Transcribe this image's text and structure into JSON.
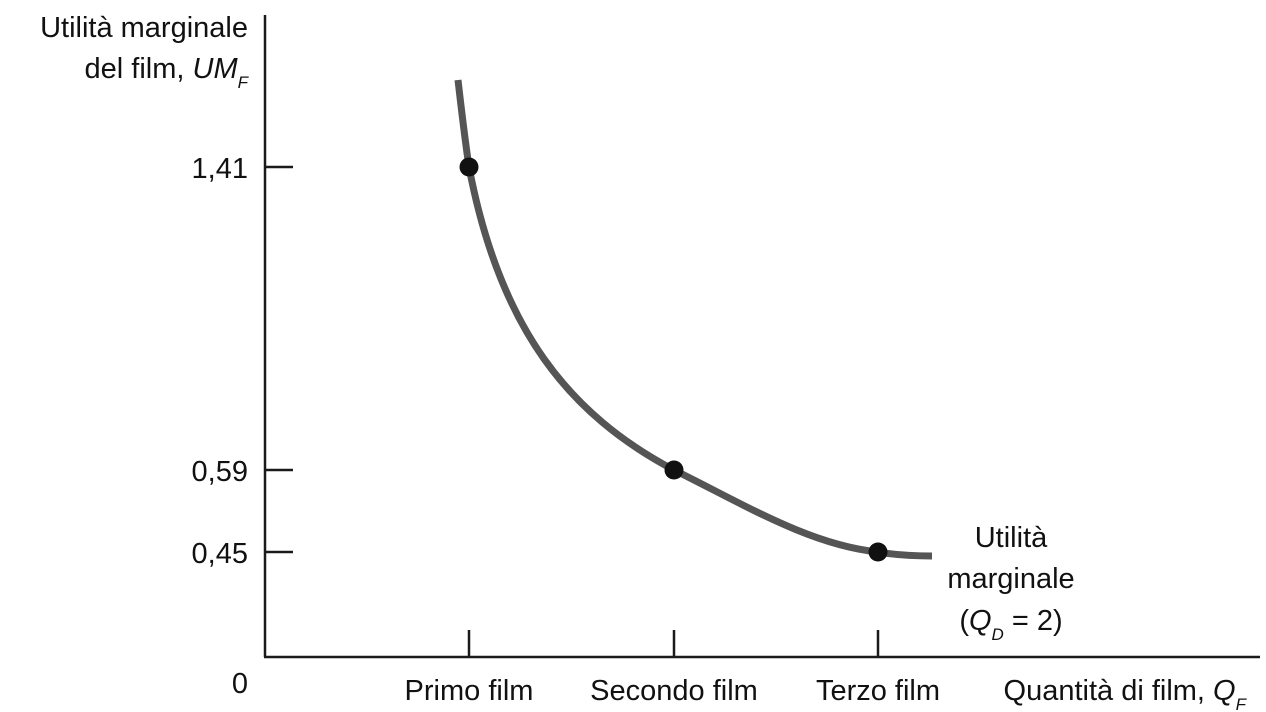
{
  "colors": {
    "curve": "#555555",
    "axis": "#1a1a1a",
    "point": "#111111",
    "text": "#111111"
  },
  "chart_data": {
    "type": "line",
    "ylabel": {
      "line1": "Utilità marginale",
      "line2_prefix": "del film, ",
      "line2_var": "UM",
      "line2_sub": "F"
    },
    "xlabel": {
      "prefix": "Quantità di film, ",
      "var": "Q",
      "sub": "F"
    },
    "origin_label": "0",
    "categories": [
      "Primo film",
      "Secondo film",
      "Terzo film"
    ],
    "y_ticks": [
      "1,41",
      "0,59",
      "0,45"
    ],
    "points": [
      {
        "x": 1,
        "y": 1.41
      },
      {
        "x": 2,
        "y": 0.59
      },
      {
        "x": 3,
        "y": 0.45
      }
    ],
    "curve_label": {
      "line1": "Utilità",
      "line2": "marginale",
      "line3_open": "(",
      "line3_var": "Q",
      "line3_sub": "D",
      "line3_rest": " = 2)"
    },
    "grid": false,
    "legend": "none"
  }
}
